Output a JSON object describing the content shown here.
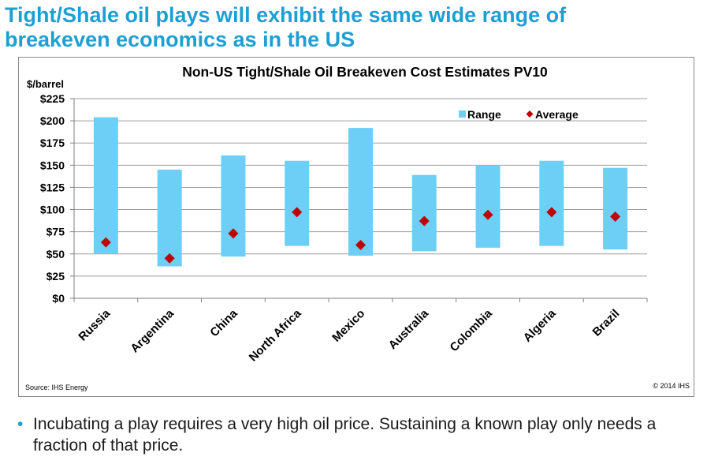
{
  "slide": {
    "title_line1": "Tight/Shale oil plays will exhibit the same wide range of",
    "title_line2": "breakeven economics as in the US",
    "bullet_text": "Incubating a play requires a very high oil price.  Sustaining a known play only needs a fraction of that price.",
    "bullet_marker": "•",
    "title_color": "#1E9FD2"
  },
  "chart_data": {
    "type": "bar",
    "title": "Non-US Tight/Shale Oil Breakeven Cost Estimates PV10",
    "ylabel": "$/barrel",
    "xlabel": "",
    "ylim": [
      0,
      225
    ],
    "yticks": [
      0,
      25,
      50,
      75,
      100,
      125,
      150,
      175,
      200,
      225
    ],
    "ytick_labels": [
      "$0",
      "$25",
      "$50",
      "$75",
      "$100",
      "$125",
      "$150",
      "$175",
      "$200",
      "$225"
    ],
    "grid": true,
    "legend": [
      "Range",
      "Average"
    ],
    "legend_position": "top-right",
    "categories": [
      "Russia",
      "Argentina",
      "China",
      "North Africa",
      "Mexico",
      "Australia",
      "Colombia",
      "Algeria",
      "Brazil"
    ],
    "series": [
      {
        "name": "Range",
        "kind": "floating-bar",
        "color": "#6DCFF6",
        "low": [
          50,
          36,
          47,
          59,
          48,
          53,
          57,
          59,
          55
        ],
        "high": [
          204,
          145,
          161,
          155,
          192,
          139,
          150,
          155,
          147
        ]
      },
      {
        "name": "Average",
        "kind": "marker",
        "color": "#C00000",
        "values": [
          63,
          45,
          73,
          97,
          60,
          87,
          94,
          97,
          92
        ]
      }
    ],
    "source": "Source: IHS Energy",
    "copyright": "© 2014 IHS"
  }
}
